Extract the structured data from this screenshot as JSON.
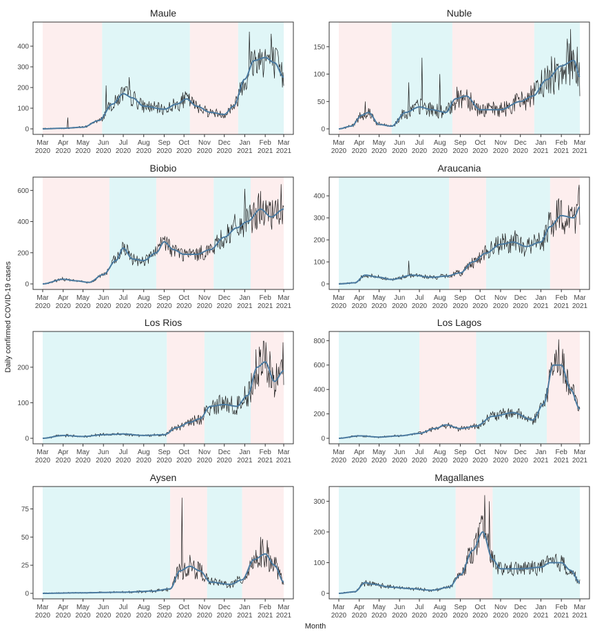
{
  "figure": {
    "ylabel": "Daily confirmed COVID-19 cases",
    "xlabel": "Month",
    "months": [
      "Mar\n2020",
      "Apr\n2020",
      "May\n2020",
      "Jun\n2020",
      "Jul\n2020",
      "Aug\n2020",
      "Sep\n2020",
      "Oct\n2020",
      "Nov\n2020",
      "Dec\n2020",
      "Jan\n2021",
      "Feb\n2021",
      "Mar\n2021"
    ],
    "colors": {
      "smooth_line": "#4a7aa0",
      "raw_line": "#1a1a1a",
      "pink_band": "#fdeeee",
      "cyan_band": "#e0f6f7",
      "panel_border": "#333333"
    }
  },
  "chart_data": [
    {
      "type": "line",
      "title": "Maule",
      "ylim": [
        0,
        490
      ],
      "yticks": [
        0,
        100,
        200,
        300,
        400
      ],
      "bands": [
        [
          "2020-03-01",
          "2020-05-30",
          "pink"
        ],
        [
          "2020-05-30",
          "2020-10-10",
          "cyan"
        ],
        [
          "2020-10-10",
          "2020-12-22",
          "pink"
        ],
        [
          "2020-12-22",
          "2021-03-01",
          "cyan"
        ]
      ],
      "keypoints": [
        [
          "2020-03-01",
          0
        ],
        [
          "2020-04-01",
          3
        ],
        [
          "2020-05-01",
          8
        ],
        [
          "2020-05-25",
          40
        ],
        [
          "2020-06-15",
          120
        ],
        [
          "2020-07-01",
          170
        ],
        [
          "2020-07-15",
          150
        ],
        [
          "2020-08-01",
          110
        ],
        [
          "2020-09-01",
          95
        ],
        [
          "2020-09-20",
          120
        ],
        [
          "2020-10-05",
          145
        ],
        [
          "2020-10-20",
          110
        ],
        [
          "2020-11-10",
          80
        ],
        [
          "2020-12-01",
          70
        ],
        [
          "2020-12-15",
          110
        ],
        [
          "2021-01-01",
          240
        ],
        [
          "2021-01-15",
          330
        ],
        [
          "2021-02-01",
          345
        ],
        [
          "2021-02-15",
          320
        ],
        [
          "2021-03-01",
          250
        ]
      ],
      "noise": 0.28,
      "spikes": [
        [
          "2020-04-08",
          55
        ],
        [
          "2020-06-05",
          210
        ],
        [
          "2020-07-10",
          250
        ],
        [
          "2021-01-08",
          470
        ],
        [
          "2021-02-10",
          460
        ]
      ]
    },
    {
      "type": "line",
      "title": "Nuble",
      "ylim": [
        0,
        185
      ],
      "yticks": [
        0,
        50,
        100,
        150
      ],
      "bands": [
        [
          "2020-03-01",
          "2020-05-20",
          "pink"
        ],
        [
          "2020-05-20",
          "2020-08-20",
          "cyan"
        ],
        [
          "2020-08-20",
          "2020-12-22",
          "pink"
        ],
        [
          "2020-12-22",
          "2021-03-01",
          "cyan"
        ]
      ],
      "keypoints": [
        [
          "2020-03-01",
          0
        ],
        [
          "2020-03-20",
          5
        ],
        [
          "2020-04-05",
          25
        ],
        [
          "2020-04-15",
          30
        ],
        [
          "2020-05-01",
          8
        ],
        [
          "2020-05-20",
          5
        ],
        [
          "2020-06-10",
          30
        ],
        [
          "2020-07-01",
          40
        ],
        [
          "2020-07-20",
          35
        ],
        [
          "2020-08-10",
          30
        ],
        [
          "2020-08-25",
          55
        ],
        [
          "2020-09-10",
          60
        ],
        [
          "2020-10-01",
          35
        ],
        [
          "2020-11-01",
          35
        ],
        [
          "2020-12-01",
          50
        ],
        [
          "2020-12-20",
          60
        ],
        [
          "2021-01-10",
          90
        ],
        [
          "2021-02-01",
          115
        ],
        [
          "2021-02-20",
          125
        ],
        [
          "2021-03-01",
          95
        ]
      ],
      "noise": 0.4,
      "spikes": [
        [
          "2020-04-10",
          50
        ],
        [
          "2020-06-15",
          85
        ],
        [
          "2020-07-05",
          130
        ],
        [
          "2020-08-01",
          100
        ],
        [
          "2021-02-15",
          183
        ],
        [
          "2021-02-25",
          150
        ]
      ]
    },
    {
      "type": "line",
      "title": "Biobio",
      "ylim": [
        0,
        650
      ],
      "yticks": [
        0,
        200,
        400,
        600
      ],
      "bands": [
        [
          "2020-03-01",
          "2020-06-10",
          "pink"
        ],
        [
          "2020-06-10",
          "2020-08-20",
          "cyan"
        ],
        [
          "2020-08-20",
          "2020-11-15",
          "pink"
        ],
        [
          "2020-11-15",
          "2021-01-10",
          "cyan"
        ],
        [
          "2021-01-10",
          "2021-03-01",
          "pink"
        ]
      ],
      "keypoints": [
        [
          "2020-03-01",
          0
        ],
        [
          "2020-04-01",
          30
        ],
        [
          "2020-04-20",
          20
        ],
        [
          "2020-05-10",
          10
        ],
        [
          "2020-06-01",
          60
        ],
        [
          "2020-06-20",
          150
        ],
        [
          "2020-07-01",
          230
        ],
        [
          "2020-07-15",
          160
        ],
        [
          "2020-08-01",
          150
        ],
        [
          "2020-08-20",
          200
        ],
        [
          "2020-09-01",
          270
        ],
        [
          "2020-09-15",
          220
        ],
        [
          "2020-10-01",
          190
        ],
        [
          "2020-10-20",
          190
        ],
        [
          "2020-11-10",
          220
        ],
        [
          "2020-12-01",
          300
        ],
        [
          "2020-12-20",
          360
        ],
        [
          "2021-01-05",
          400
        ],
        [
          "2021-01-25",
          480
        ],
        [
          "2021-02-10",
          430
        ],
        [
          "2021-03-01",
          480
        ]
      ],
      "noise": 0.25,
      "spikes": [
        [
          "2020-07-01",
          260
        ],
        [
          "2021-01-01",
          610
        ],
        [
          "2021-02-25",
          640
        ]
      ]
    },
    {
      "type": "line",
      "title": "Araucania",
      "ylim": [
        0,
        460
      ],
      "yticks": [
        0,
        100,
        200,
        300,
        400
      ],
      "bands": [
        [
          "2020-03-01",
          "2020-08-15",
          "cyan"
        ],
        [
          "2020-08-15",
          "2020-10-10",
          "pink"
        ],
        [
          "2020-10-10",
          "2021-01-15",
          "cyan"
        ],
        [
          "2021-01-15",
          "2021-03-01",
          "pink"
        ]
      ],
      "keypoints": [
        [
          "2020-03-01",
          0
        ],
        [
          "2020-03-25",
          5
        ],
        [
          "2020-04-10",
          40
        ],
        [
          "2020-05-01",
          30
        ],
        [
          "2020-05-20",
          20
        ],
        [
          "2020-06-20",
          40
        ],
        [
          "2020-07-20",
          30
        ],
        [
          "2020-08-10",
          35
        ],
        [
          "2020-09-01",
          50
        ],
        [
          "2020-09-20",
          100
        ],
        [
          "2020-10-10",
          140
        ],
        [
          "2020-11-01",
          180
        ],
        [
          "2020-11-20",
          190
        ],
        [
          "2020-12-10",
          170
        ],
        [
          "2021-01-01",
          190
        ],
        [
          "2021-01-15",
          260
        ],
        [
          "2021-02-01",
          310
        ],
        [
          "2021-02-20",
          300
        ],
        [
          "2021-03-01",
          350
        ]
      ],
      "noise": 0.28,
      "spikes": [
        [
          "2020-06-15",
          105
        ],
        [
          "2021-02-28",
          450
        ],
        [
          "2021-01-25",
          380
        ]
      ]
    },
    {
      "type": "line",
      "title": "Los Rios",
      "ylim": [
        0,
        285
      ],
      "yticks": [
        0,
        100,
        200
      ],
      "bands": [
        [
          "2020-03-01",
          "2020-09-05",
          "cyan"
        ],
        [
          "2020-09-05",
          "2020-11-01",
          "pink"
        ],
        [
          "2020-11-01",
          "2021-01-10",
          "cyan"
        ],
        [
          "2021-01-10",
          "2021-03-01",
          "pink"
        ]
      ],
      "keypoints": [
        [
          "2020-03-01",
          0
        ],
        [
          "2020-04-01",
          8
        ],
        [
          "2020-05-01",
          5
        ],
        [
          "2020-06-01",
          10
        ],
        [
          "2020-07-01",
          12
        ],
        [
          "2020-08-01",
          8
        ],
        [
          "2020-09-01",
          10
        ],
        [
          "2020-09-20",
          30
        ],
        [
          "2020-10-10",
          45
        ],
        [
          "2020-10-25",
          55
        ],
        [
          "2020-11-10",
          90
        ],
        [
          "2020-12-01",
          95
        ],
        [
          "2020-12-20",
          90
        ],
        [
          "2021-01-05",
          120
        ],
        [
          "2021-01-20",
          200
        ],
        [
          "2021-02-01",
          215
        ],
        [
          "2021-02-15",
          160
        ],
        [
          "2021-03-01",
          190
        ]
      ],
      "noise": 0.3,
      "spikes": [
        [
          "2021-01-25",
          250
        ],
        [
          "2021-02-28",
          270
        ]
      ]
    },
    {
      "type": "line",
      "title": "Los Lagos",
      "ylim": [
        0,
        830
      ],
      "yticks": [
        0,
        200,
        400,
        600,
        800
      ],
      "bands": [
        [
          "2020-03-01",
          "2020-07-01",
          "cyan"
        ],
        [
          "2020-07-01",
          "2020-09-25",
          "pink"
        ],
        [
          "2020-09-25",
          "2021-01-10",
          "cyan"
        ],
        [
          "2021-01-10",
          "2021-03-01",
          "pink"
        ]
      ],
      "keypoints": [
        [
          "2020-03-01",
          0
        ],
        [
          "2020-04-01",
          20
        ],
        [
          "2020-05-01",
          10
        ],
        [
          "2020-06-01",
          20
        ],
        [
          "2020-07-01",
          40
        ],
        [
          "2020-07-25",
          80
        ],
        [
          "2020-08-10",
          110
        ],
        [
          "2020-09-01",
          80
        ],
        [
          "2020-09-25",
          100
        ],
        [
          "2020-10-20",
          180
        ],
        [
          "2020-11-20",
          210
        ],
        [
          "2020-12-20",
          150
        ],
        [
          "2021-01-05",
          280
        ],
        [
          "2021-01-20",
          600
        ],
        [
          "2021-02-01",
          600
        ],
        [
          "2021-02-15",
          400
        ],
        [
          "2021-03-01",
          240
        ]
      ],
      "noise": 0.25,
      "spikes": [
        [
          "2021-01-28",
          810
        ]
      ]
    },
    {
      "type": "line",
      "title": "Aysen",
      "ylim": [
        0,
        90
      ],
      "yticks": [
        0,
        25,
        50,
        75
      ],
      "bands": [
        [
          "2020-03-01",
          "2020-09-10",
          "cyan"
        ],
        [
          "2020-09-10",
          "2020-11-05",
          "pink"
        ],
        [
          "2020-11-05",
          "2020-12-28",
          "cyan"
        ],
        [
          "2020-12-28",
          "2021-03-01",
          "pink"
        ]
      ],
      "keypoints": [
        [
          "2020-03-01",
          0
        ],
        [
          "2020-05-01",
          0.5
        ],
        [
          "2020-07-01",
          1
        ],
        [
          "2020-08-15",
          2
        ],
        [
          "2020-09-10",
          4
        ],
        [
          "2020-09-25",
          20
        ],
        [
          "2020-10-10",
          24
        ],
        [
          "2020-10-25",
          20
        ],
        [
          "2020-11-10",
          10
        ],
        [
          "2020-12-10",
          8
        ],
        [
          "2020-12-28",
          12
        ],
        [
          "2021-01-15",
          30
        ],
        [
          "2021-02-01",
          35
        ],
        [
          "2021-02-15",
          25
        ],
        [
          "2021-03-01",
          10
        ]
      ],
      "noise": 0.4,
      "spikes": [
        [
          "2020-09-28",
          85
        ],
        [
          "2021-01-25",
          50
        ]
      ]
    },
    {
      "type": "line",
      "title": "Magallanes",
      "ylim": [
        0,
        330
      ],
      "yticks": [
        0,
        100,
        200,
        300
      ],
      "bands": [
        [
          "2020-03-01",
          "2020-08-25",
          "cyan"
        ],
        [
          "2020-08-25",
          "2020-10-20",
          "pink"
        ],
        [
          "2020-10-20",
          "2021-03-01",
          "cyan"
        ]
      ],
      "keypoints": [
        [
          "2020-03-01",
          0
        ],
        [
          "2020-03-25",
          5
        ],
        [
          "2020-04-10",
          35
        ],
        [
          "2020-04-20",
          30
        ],
        [
          "2020-05-20",
          20
        ],
        [
          "2020-06-20",
          15
        ],
        [
          "2020-07-20",
          10
        ],
        [
          "2020-08-15",
          20
        ],
        [
          "2020-09-01",
          60
        ],
        [
          "2020-09-20",
          140
        ],
        [
          "2020-10-05",
          200
        ],
        [
          "2020-10-20",
          110
        ],
        [
          "2020-11-01",
          80
        ],
        [
          "2020-12-01",
          80
        ],
        [
          "2021-01-01",
          85
        ],
        [
          "2021-01-15",
          100
        ],
        [
          "2021-02-01",
          100
        ],
        [
          "2021-02-15",
          75
        ],
        [
          "2021-03-01",
          35
        ]
      ],
      "noise": 0.3,
      "spikes": [
        [
          "2020-10-08",
          320
        ],
        [
          "2020-10-15",
          300
        ]
      ]
    }
  ]
}
